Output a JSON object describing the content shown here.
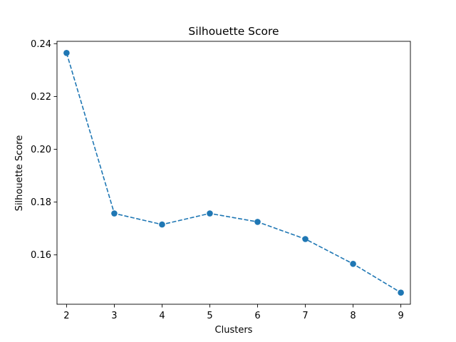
{
  "chart_data": {
    "type": "line",
    "title": "Silhouette Score",
    "xlabel": "Clusters",
    "ylabel": "Silhouette Score",
    "x": [
      2,
      3,
      4,
      5,
      6,
      7,
      8,
      9
    ],
    "series": [
      {
        "values": [
          0.2365,
          0.1757,
          0.1715,
          0.1757,
          0.1725,
          0.166,
          0.1566,
          0.1457
        ],
        "color": "#1f77b4",
        "line_style": "dashed",
        "marker": "circle"
      }
    ],
    "xlim": [
      1.8,
      9.2
    ],
    "ylim": [
      0.1413,
      0.2409
    ],
    "xticks": [
      2,
      3,
      4,
      5,
      6,
      7,
      8,
      9
    ],
    "xtick_labels": [
      "2",
      "3",
      "4",
      "5",
      "6",
      "7",
      "8",
      "9"
    ],
    "yticks": [
      0.16,
      0.18,
      0.2,
      0.22,
      0.24
    ],
    "ytick_labels": [
      "0.16",
      "0.18",
      "0.20",
      "0.22",
      "0.24"
    ],
    "grid": false,
    "legend": false
  }
}
